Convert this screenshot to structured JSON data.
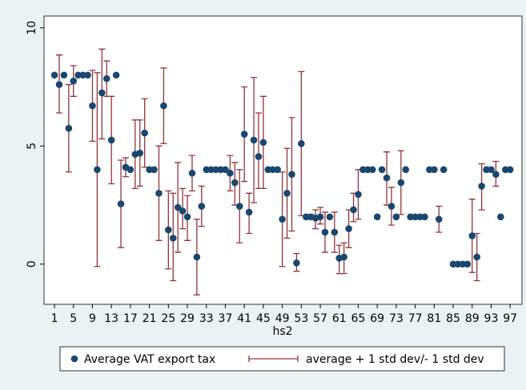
{
  "chart_data": {
    "type": "scatter",
    "x_label": "hs2",
    "x": [
      1,
      2,
      3,
      4,
      5,
      6,
      7,
      8,
      9,
      10,
      11,
      12,
      13,
      14,
      15,
      16,
      17,
      18,
      19,
      20,
      21,
      22,
      23,
      24,
      25,
      26,
      27,
      28,
      29,
      30,
      31,
      32,
      33,
      34,
      35,
      36,
      37,
      38,
      39,
      40,
      41,
      42,
      43,
      44,
      45,
      46,
      47,
      48,
      49,
      50,
      51,
      52,
      53,
      54,
      55,
      56,
      57,
      58,
      59,
      60,
      61,
      62,
      63,
      64,
      65,
      66,
      67,
      68,
      69,
      70,
      71,
      72,
      73,
      74,
      75,
      76,
      77,
      78,
      79,
      80,
      81,
      82,
      83,
      85,
      86,
      87,
      88,
      89,
      90,
      91,
      92,
      93,
      94,
      95,
      96,
      97
    ],
    "series": [
      {
        "name": "Average VAT export tax",
        "color": "#1a476f",
        "values": [
          8.0,
          7.6,
          8.0,
          5.75,
          7.75,
          8,
          8,
          8,
          6.7,
          4.0,
          7.25,
          7.85,
          5.25,
          8.0,
          2.55,
          4.1,
          4.0,
          4.65,
          4.7,
          5.55,
          4,
          4,
          3.0,
          6.7,
          1.45,
          1.1,
          2.4,
          2.25,
          2.0,
          3.85,
          0.3,
          2.45,
          4,
          4,
          4,
          4,
          4,
          3.85,
          3.45,
          2.45,
          5.5,
          2.2,
          5.25,
          4.55,
          5.15,
          4,
          4,
          4,
          1.9,
          3.0,
          3.8,
          0.05,
          5.1,
          2,
          2,
          1.95,
          2,
          1.35,
          2,
          1.35,
          0.25,
          0.3,
          1.5,
          2.3,
          2.95,
          4,
          4,
          4,
          2,
          4,
          3.65,
          2.45,
          2,
          3.45,
          4,
          2,
          2,
          2,
          2,
          4,
          4,
          1.9,
          4,
          0,
          0,
          0,
          0,
          1.2,
          0.3,
          3.3,
          4,
          4,
          3.8,
          2,
          4,
          4
        ]
      },
      {
        "name": "average + 1 std dev/- 1 std dev",
        "color": "#90353b",
        "low": [
          null,
          6.4,
          null,
          3.9,
          7.1,
          null,
          null,
          null,
          5.2,
          -0.1,
          5.3,
          7.1,
          3.4,
          null,
          0.7,
          3.7,
          null,
          3.2,
          3.3,
          4.1,
          null,
          null,
          1.0,
          5.1,
          -0.2,
          -0.7,
          0.5,
          1.5,
          1.0,
          3.1,
          -1.3,
          1.6,
          null,
          null,
          null,
          null,
          null,
          3.1,
          2.5,
          0.9,
          3.5,
          1.3,
          2.6,
          3.2,
          3.2,
          null,
          null,
          null,
          -0.1,
          1.1,
          1.4,
          -0.3,
          2.05,
          null,
          1.9,
          1.5,
          1.7,
          0.5,
          null,
          0.5,
          -0.4,
          -0.4,
          0.7,
          1.8,
          1.9,
          null,
          null,
          null,
          null,
          null,
          2.5,
          1.65,
          null,
          2.1,
          null,
          null,
          null,
          null,
          null,
          null,
          null,
          1.35,
          null,
          null,
          null,
          null,
          null,
          -0.35,
          -0.7,
          2.3,
          null,
          null,
          3.3,
          null,
          null,
          null
        ],
        "high": [
          null,
          8.85,
          null,
          7.6,
          8.4,
          null,
          null,
          null,
          8.2,
          8.1,
          9.1,
          8.6,
          7.1,
          null,
          4.4,
          4.5,
          null,
          6.1,
          6.1,
          7.0,
          null,
          null,
          5.0,
          8.3,
          3.1,
          3.0,
          4.3,
          3.2,
          2.9,
          4.6,
          1.9,
          3.3,
          null,
          null,
          null,
          null,
          null,
          4.6,
          4.3,
          4.0,
          7.5,
          3.0,
          7.9,
          6.4,
          7.1,
          null,
          null,
          null,
          3.9,
          4.9,
          6.2,
          0.45,
          8.15,
          null,
          2.1,
          2.3,
          2.4,
          2.2,
          null,
          2.2,
          0.8,
          0.9,
          2.3,
          3.0,
          4.0,
          null,
          null,
          null,
          null,
          null,
          4.75,
          3.25,
          null,
          4.8,
          null,
          null,
          null,
          null,
          null,
          null,
          null,
          2.45,
          null,
          null,
          null,
          null,
          null,
          2.75,
          1.3,
          4.25,
          null,
          null,
          4.35,
          null,
          null,
          null
        ]
      }
    ],
    "xlim": [
      -1.2,
      99.5
    ],
    "ylim": [
      -1.7,
      10.5
    ],
    "xticks": [
      1,
      5,
      9,
      13,
      17,
      21,
      25,
      29,
      33,
      37,
      41,
      45,
      49,
      53,
      57,
      61,
      65,
      69,
      73,
      77,
      81,
      85,
      89,
      93,
      97
    ],
    "yticks": [
      0,
      5,
      10
    ],
    "grid": false
  }
}
